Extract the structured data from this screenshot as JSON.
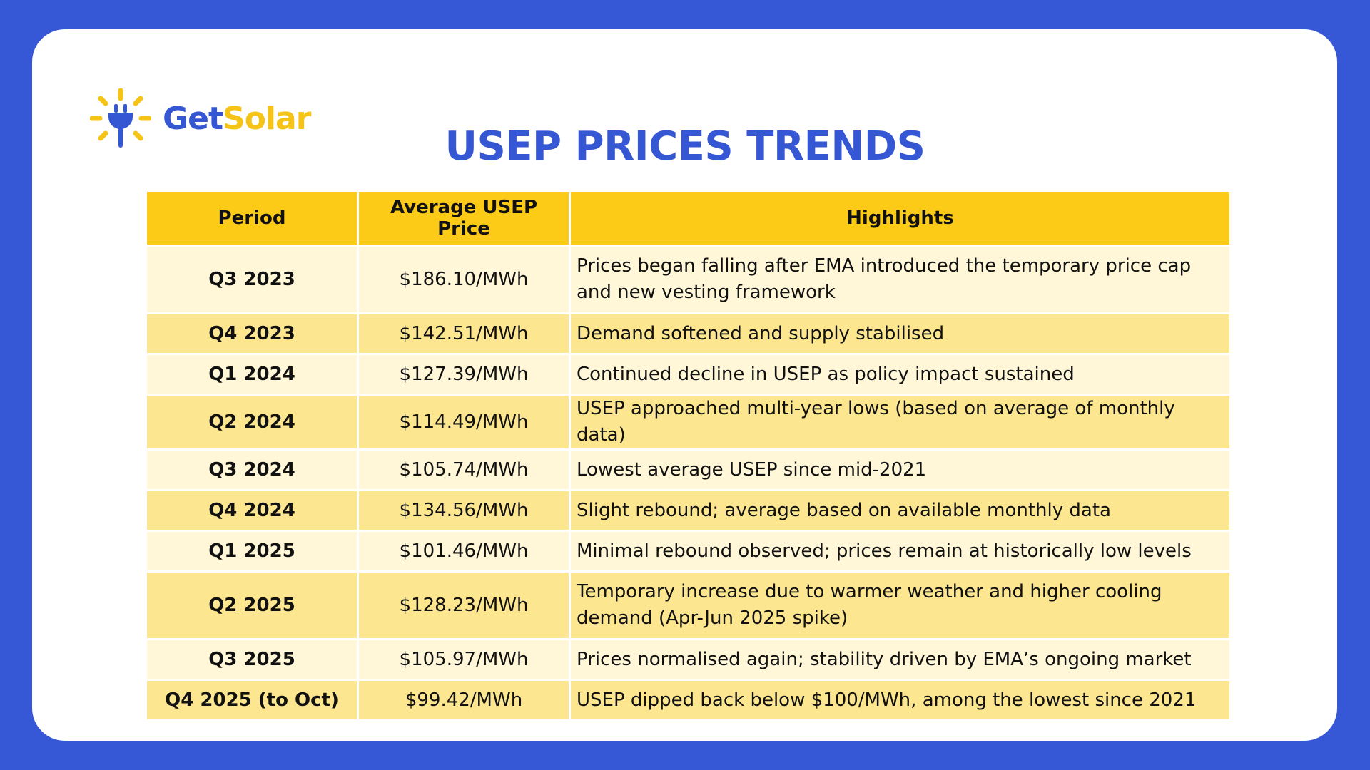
{
  "brand": {
    "name_part1": "Get",
    "name_part2": "Solar",
    "colors": {
      "blue": "#3557d4",
      "yellow": "#f6c317"
    },
    "icon": "sun-plug-icon"
  },
  "title": "USEP PRICES TRENDS",
  "table": {
    "headers": {
      "period": "Period",
      "price": "Average USEP Price",
      "highlights": "Highlights"
    },
    "rows": [
      {
        "period": "Q3 2023",
        "price": "$186.10/MWh",
        "highlight": "Prices began falling after EMA introduced the temporary price cap and new vesting framework"
      },
      {
        "period": "Q4 2023",
        "price": "$142.51/MWh",
        "highlight": "Demand softened and supply stabilised"
      },
      {
        "period": "Q1 2024",
        "price": "$127.39/MWh",
        "highlight": "Continued decline in USEP as policy impact sustained"
      },
      {
        "period": "Q2 2024",
        "price": "$114.49/MWh",
        "highlight": "USEP approached multi-year lows (based on average of monthly data)"
      },
      {
        "period": "Q3 2024",
        "price": "$105.74/MWh",
        "highlight": "Lowest average USEP since mid-2021"
      },
      {
        "period": "Q4 2024",
        "price": "$134.56/MWh",
        "highlight": "Slight rebound; average based on available monthly data"
      },
      {
        "period": "Q1 2025",
        "price": "$101.46/MWh",
        "highlight": "Minimal rebound observed; prices remain at historically low levels"
      },
      {
        "period": "Q2 2025",
        "price": "$128.23/MWh",
        "highlight": "Temporary increase due to warmer weather and higher cooling demand (Apr-Jun 2025 spike)"
      },
      {
        "period": "Q3 2025",
        "price": "$105.97/MWh",
        "highlight": "Prices normalised again; stability driven by EMA’s ongoing market"
      },
      {
        "period": "Q4 2025 (to Oct)",
        "price": "$99.42/MWh",
        "highlight": "USEP dipped back below $100/MWh, among the lowest since 2021"
      }
    ]
  },
  "colors": {
    "page_background": "#3657d6",
    "header_fill": "#fccb18",
    "row_light": "#fff7d7",
    "row_dark": "#fde690"
  }
}
